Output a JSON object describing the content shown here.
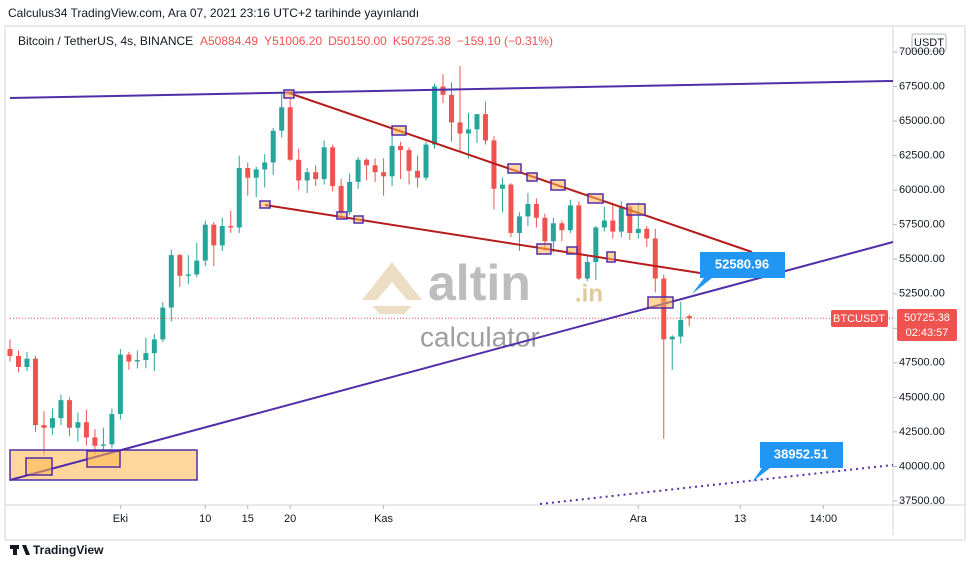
{
  "chart_data": {
    "type": "candlestick",
    "publisher": "Calculus34 TradingView.com, Ara 07, 2021 23:16 UTC+2 tarihinde yayınlandı",
    "symbol": "Bitcoin / TetherUS, 4s, BINANCE",
    "ohlc_text": [
      "A50884.49",
      "Y51006.20",
      "D50150.00",
      "K50725.38",
      "−159.10 (−0.31%)"
    ],
    "currency": "USDT",
    "ticker_label": "BTCUSDT",
    "countdown": "02:43:57",
    "annotations": [
      "52580.96",
      "38952.51"
    ],
    "watermark": [
      "altin",
      ".in",
      "calculator"
    ],
    "brand": "TradingView",
    "up_color": "#26a69a",
    "down_color": "#ef5350",
    "x": [
      -13,
      -12,
      -11,
      -10,
      -9,
      -8,
      -7,
      -6,
      -5,
      -4,
      -3,
      -2,
      -1,
      0,
      1,
      2,
      3,
      4,
      5,
      6,
      7,
      8,
      9,
      10,
      11,
      12,
      13,
      14,
      15,
      16,
      17,
      18,
      19,
      20,
      21,
      22,
      23,
      24,
      25,
      26,
      27,
      28,
      29,
      30,
      31,
      32,
      33,
      34,
      35,
      36,
      37,
      38,
      39,
      40,
      41,
      42,
      43,
      44,
      45,
      46,
      47,
      48,
      49,
      50,
      51,
      52,
      53,
      54,
      55,
      56,
      57,
      58,
      59,
      60,
      61,
      62,
      63,
      64,
      65,
      66,
      67
    ],
    "open": [
      48500,
      48000,
      47200,
      47800,
      43000,
      42800,
      43500,
      44800,
      42800,
      43200,
      42100,
      41500,
      41600,
      43800,
      48100,
      47600,
      47700,
      48200,
      49200,
      51500,
      55300,
      53800,
      53900,
      54900,
      57500,
      56000,
      57400,
      57300,
      61600,
      60900,
      61500,
      62000,
      64300,
      66000,
      62200,
      60700,
      61300,
      60800,
      63100,
      60300,
      58400,
      60600,
      62200,
      61800,
      61300,
      61000,
      63200,
      62900,
      61400,
      60900,
      63300,
      67500,
      66900,
      64900,
      64100,
      64400,
      65500,
      63600,
      60100,
      60400,
      56900,
      58100,
      59000,
      58000,
      56300,
      57600,
      57100,
      58900,
      53600,
      54800,
      57300,
      57800,
      57000,
      58800,
      56900,
      57200,
      56500,
      53600,
      49200,
      49400,
      50884.49
    ],
    "high": [
      49200,
      48400,
      48300,
      48000,
      44000,
      44200,
      45200,
      45000,
      43900,
      44100,
      42700,
      42800,
      44200,
      48500,
      48300,
      48400,
      49300,
      49600,
      51900,
      55700,
      55400,
      55300,
      56200,
      57800,
      57700,
      58000,
      58500,
      62500,
      62000,
      61700,
      62600,
      64500,
      67000,
      66600,
      63000,
      61600,
      61800,
      63600,
      63300,
      60800,
      61200,
      62400,
      62300,
      62300,
      62300,
      64200,
      63500,
      63100,
      62500,
      63500,
      67700,
      68400,
      67800,
      69000,
      65600,
      65500,
      66400,
      63900,
      60900,
      60500,
      58400,
      59800,
      59400,
      58300,
      58000,
      57800,
      59300,
      59200,
      55300,
      57400,
      58800,
      59100,
      59200,
      59000,
      59100,
      57400,
      57200,
      53900,
      49500,
      51900,
      51006.2
    ],
    "low": [
      47600,
      46800,
      46900,
      42500,
      40800,
      42300,
      43000,
      42200,
      41800,
      41500,
      40800,
      41100,
      41300,
      43400,
      47000,
      47100,
      47100,
      46900,
      49000,
      50500,
      53000,
      53200,
      53700,
      54500,
      54500,
      55600,
      56900,
      56900,
      59600,
      59500,
      60200,
      61100,
      63800,
      62100,
      60000,
      59800,
      60300,
      60400,
      59900,
      58100,
      58200,
      60100,
      60700,
      60600,
      59600,
      60300,
      60800,
      60400,
      60200,
      60700,
      63000,
      66300,
      63500,
      62800,
      62300,
      63400,
      63300,
      58600,
      58400,
      56600,
      55600,
      57400,
      57300,
      55800,
      55500,
      56300,
      56900,
      53500,
      53400,
      53500,
      57000,
      56500,
      56600,
      56400,
      56500,
      55900,
      52600,
      42000,
      47000,
      48900,
      50150
    ],
    "close": [
      48000,
      47200,
      47800,
      43000,
      42800,
      43500,
      44800,
      42800,
      43200,
      42100,
      41500,
      41600,
      43800,
      48100,
      47600,
      47700,
      48200,
      49200,
      51500,
      55300,
      53800,
      53900,
      54900,
      57500,
      56000,
      57400,
      57300,
      61600,
      60900,
      61500,
      62000,
      64300,
      66000,
      62200,
      60700,
      61300,
      60800,
      63100,
      60300,
      58400,
      60600,
      62200,
      61800,
      61300,
      61000,
      63200,
      62900,
      61400,
      60900,
      63300,
      67500,
      66900,
      64900,
      64100,
      64400,
      65500,
      63600,
      60100,
      60400,
      56900,
      58100,
      59000,
      58000,
      56300,
      57600,
      57100,
      58900,
      53600,
      54800,
      57300,
      57800,
      57000,
      58800,
      56900,
      57200,
      56500,
      53600,
      49200,
      49400,
      50600,
      50725.38
    ],
    "xlim": [
      -13,
      91
    ],
    "xticks": [
      {
        "value": 0,
        "label": "Eki"
      },
      10,
      20,
      {
        "value": 31,
        "label": "Kas"
      },
      15,
      {
        "value": 61,
        "label": "Ara"
      },
      {
        "value": 73,
        "label": "13"
      },
      {
        "value": 82.8,
        "label": "14:00"
      }
    ],
    "ylim": [
      37210,
      71736
    ],
    "yticks": [
      {
        "value": 37500,
        "label": "37500.00"
      },
      {
        "value": 40000,
        "label": "40000.00"
      },
      {
        "value": 42500,
        "label": "42500.00"
      },
      {
        "value": 45000,
        "label": "45000.00"
      },
      {
        "value": 47500,
        "label": "47500.00"
      },
      {
        "value": 50000,
        "label": "50000.00"
      },
      {
        "value": 52500,
        "label": "52500.00"
      },
      {
        "value": 55000,
        "label": "55000.00"
      },
      {
        "value": 57500,
        "label": "57500.00"
      },
      {
        "value": 60000,
        "label": "60000.00"
      },
      {
        "value": 62500,
        "label": "62500.00"
      },
      {
        "value": 65000,
        "label": "65000.00"
      },
      {
        "value": 67500,
        "label": "67500.00"
      },
      {
        "value": 70000,
        "label": "70000.00"
      }
    ],
    "grid": false
  }
}
